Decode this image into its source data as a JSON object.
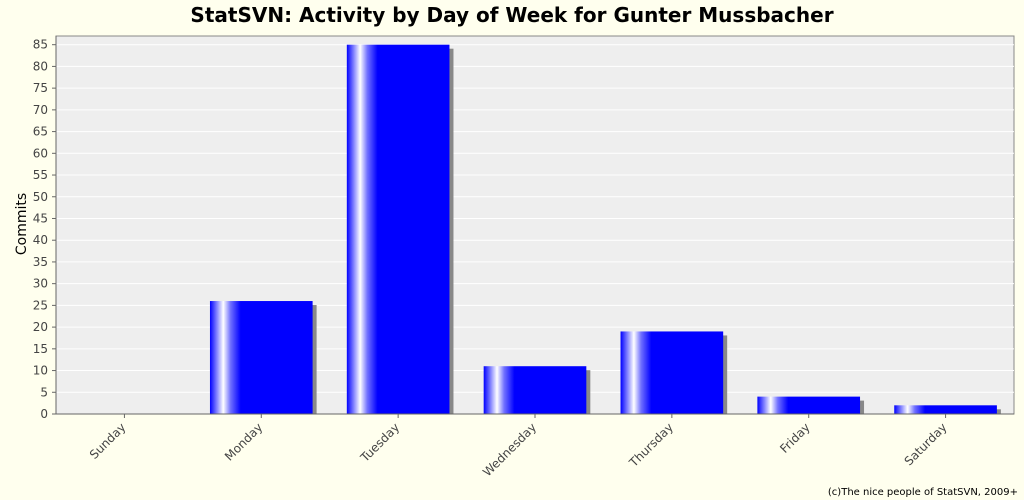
{
  "chart_data": {
    "type": "bar",
    "title": "StatSVN: Activity by Day of Week for Gunter Mussbacher",
    "xlabel": "",
    "ylabel": "Commits",
    "categories": [
      "Sunday",
      "Monday",
      "Tuesday",
      "Wednesday",
      "Thursday",
      "Friday",
      "Saturday"
    ],
    "values": [
      0,
      26,
      85,
      11,
      19,
      4,
      2
    ],
    "ylim": [
      0,
      87
    ],
    "yticks": [
      0,
      5,
      10,
      15,
      20,
      25,
      30,
      35,
      40,
      45,
      50,
      55,
      60,
      65,
      70,
      75,
      80,
      85
    ],
    "grid": true,
    "bar_color": "#0000ff",
    "plot_background": "#eeeeee"
  },
  "footer": "(c)The nice people of StatSVN, 2009+"
}
